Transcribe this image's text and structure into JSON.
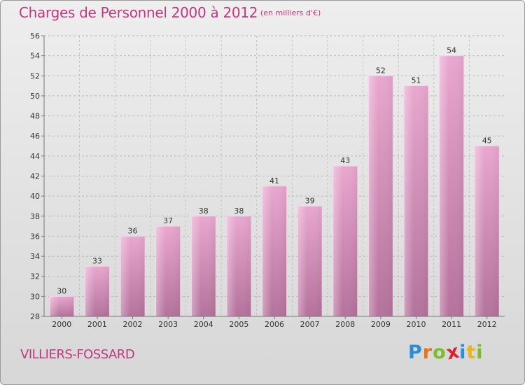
{
  "chart_data": {
    "type": "bar",
    "title": "Charges de Personnel 2000 à 2012",
    "subtitle": "(en milliers d'€)",
    "categories": [
      "2000",
      "2001",
      "2002",
      "2003",
      "2004",
      "2005",
      "2006",
      "2007",
      "2008",
      "2009",
      "2010",
      "2011",
      "2012"
    ],
    "values": [
      30,
      33,
      36,
      37,
      38,
      38,
      41,
      39,
      43,
      52,
      51,
      54,
      45
    ],
    "ylim": [
      28,
      56
    ],
    "yticks": [
      28,
      30,
      32,
      34,
      36,
      38,
      40,
      42,
      44,
      46,
      48,
      50,
      52,
      54,
      56
    ],
    "xlabel": "",
    "ylabel": "",
    "grid": true,
    "bar_color": "#d88fb8"
  },
  "commune": "VILLIERS-FOSSARD",
  "logo": {
    "text": "Proxiti",
    "letter_colors": [
      "#2a8fd6",
      "#e8731b",
      "#7cbb2a",
      "#d6262f",
      "#2a8fd6",
      "#e8b61b",
      "#7cbb2a"
    ]
  }
}
